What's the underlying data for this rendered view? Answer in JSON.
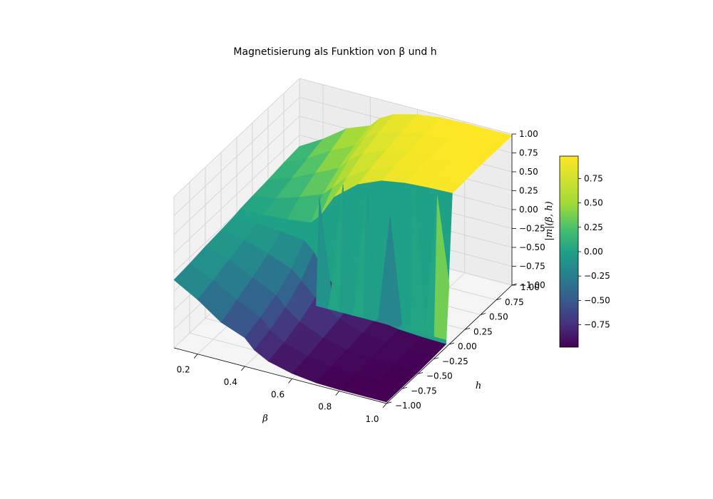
{
  "chart_data": {
    "type": "surface3d",
    "title": "Magnetisierung als Funktion von β und h",
    "xlabel": "β",
    "ylabel": "h",
    "zlabel": "|m|(β, h)",
    "xlim": [
      0.1,
      1.0
    ],
    "ylim": [
      -1.0,
      1.0
    ],
    "zlim": [
      -1.0,
      1.0
    ],
    "x_ticks": [
      "0.2",
      "0.4",
      "0.6",
      "0.8",
      "1.0"
    ],
    "y_ticks": [
      "−1.00",
      "−0.75",
      "−0.50",
      "−0.25",
      "0.00",
      "0.25",
      "0.50",
      "0.75",
      "1.00"
    ],
    "z_ticks": [
      "−1.00",
      "−0.75",
      "−0.50",
      "−0.25",
      "0.00",
      "0.25",
      "0.50",
      "0.75",
      "1.00"
    ],
    "colorbar": {
      "colormap": "viridis",
      "range": [
        -0.98,
        0.98
      ],
      "ticks": [
        "−0.75",
        "−0.50",
        "−0.25",
        "0.00",
        "0.25",
        "0.50",
        "0.75"
      ]
    },
    "beta": [
      0.1,
      0.2,
      0.3,
      0.4,
      0.44,
      0.5,
      0.6,
      0.7,
      0.8,
      0.9,
      1.0
    ],
    "h": [
      -1.0,
      -0.75,
      -0.5,
      -0.25,
      -0.05,
      0.05,
      0.25,
      0.5,
      0.75,
      1.0
    ],
    "m": [
      [
        -0.1,
        -0.28,
        -0.5,
        -0.62,
        -0.75,
        -0.85,
        -0.93,
        -0.97,
        -0.98,
        -0.98,
        -0.98
      ],
      [
        -0.08,
        -0.22,
        -0.4,
        -0.55,
        -0.68,
        -0.8,
        -0.9,
        -0.95,
        -0.97,
        -0.98,
        -0.98
      ],
      [
        -0.05,
        -0.15,
        -0.3,
        -0.45,
        -0.58,
        -0.72,
        -0.85,
        -0.93,
        -0.96,
        -0.97,
        -0.98
      ],
      [
        -0.03,
        -0.08,
        -0.18,
        -0.3,
        -0.42,
        -0.6,
        -0.8,
        -0.9,
        -0.94,
        -0.96,
        -0.97
      ],
      [
        -0.01,
        -0.02,
        -0.04,
        -0.08,
        -0.2,
        -0.5,
        -0.75,
        -0.88,
        -0.93,
        -0.95,
        -0.96
      ],
      [
        0.01,
        0.02,
        0.04,
        0.08,
        0.2,
        0.5,
        0.75,
        0.88,
        0.93,
        0.95,
        0.96
      ],
      [
        0.03,
        0.08,
        0.18,
        0.3,
        0.42,
        0.6,
        0.8,
        0.9,
        0.94,
        0.96,
        0.97
      ],
      [
        0.05,
        0.15,
        0.3,
        0.45,
        0.58,
        0.72,
        0.85,
        0.93,
        0.96,
        0.97,
        0.98
      ],
      [
        0.08,
        0.22,
        0.4,
        0.55,
        0.68,
        0.8,
        0.9,
        0.95,
        0.97,
        0.98,
        0.98
      ],
      [
        0.1,
        0.28,
        0.5,
        0.62,
        0.75,
        0.85,
        0.93,
        0.97,
        0.98,
        0.98,
        0.98
      ]
    ],
    "zero_field_row_beta": [
      0.45,
      0.5,
      0.55,
      0.6,
      0.65,
      0.7,
      0.75,
      0.8,
      0.85,
      0.9,
      0.95,
      1.0
    ],
    "zero_field_row_m": [
      0.5,
      -0.7,
      0.75,
      -0.8,
      0.85,
      -0.9,
      0.5,
      -0.9,
      0.9,
      -0.85,
      0.92,
      -0.2
    ],
    "grid": true,
    "colorbar_position": "right"
  }
}
